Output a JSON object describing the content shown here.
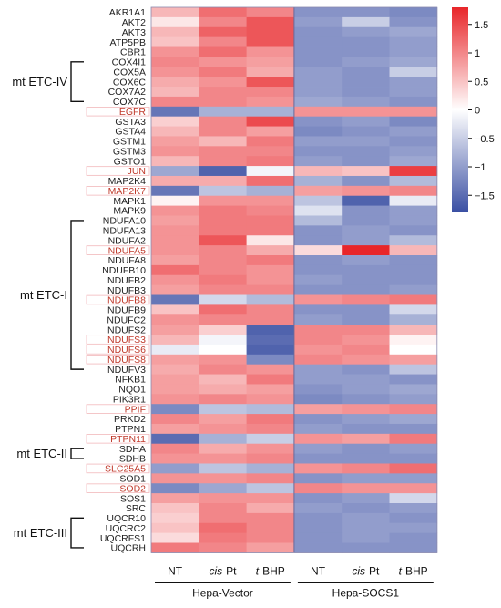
{
  "chart_data": {
    "type": "heatmap",
    "genes": [
      "AKR1A1",
      "AKT2",
      "AKT3",
      "ATP5PB",
      "CBR1",
      "COX4I1",
      "COX5A",
      "COX6C",
      "COX7A2",
      "COX7C",
      "EGFR",
      "GSTA3",
      "GSTA4",
      "GSTM1",
      "GSTM3",
      "GSTO1",
      "JUN",
      "MAP2K4",
      "MAP2K7",
      "MAPK1",
      "MAPK9",
      "NDUFA10",
      "NDUFA13",
      "NDUFA2",
      "NDUFA5",
      "NDUFA8",
      "NDUFB10",
      "NDUFB2",
      "NDUFB3",
      "NDUFB8",
      "NDUFB9",
      "NDUFC2",
      "NDUFS2",
      "NDUFS3",
      "NDUFS6",
      "NDUFS8",
      "NDUFV3",
      "NFKB1",
      "NQO1",
      "PIK3R1",
      "PPIF",
      "PRKD2",
      "PTPN1",
      "PTPN11",
      "SDHA",
      "SDHB",
      "SLC25A5",
      "SOD1",
      "SOD2",
      "SOS1",
      "SRC",
      "UQCR10",
      "UQCRC2",
      "UQCRFS1",
      "UQCRH"
    ],
    "highlighted_genes": [
      "EGFR",
      "JUN",
      "MAP2K7",
      "NDUFA5",
      "NDUFB8",
      "NDUFS3",
      "NDUFS6",
      "NDUFS8",
      "PPIF",
      "PTPN11",
      "SLC25A5",
      "SOD2"
    ],
    "columns": [
      {
        "prefix": "",
        "italic": "",
        "suffix": "NT"
      },
      {
        "prefix": "",
        "italic": "cis",
        "suffix": "-Pt"
      },
      {
        "prefix": "",
        "italic": "t",
        "suffix": "-BHP"
      },
      {
        "prefix": "",
        "italic": "",
        "suffix": "NT"
      },
      {
        "prefix": "",
        "italic": "cis",
        "suffix": "-Pt"
      },
      {
        "prefix": "",
        "italic": "t",
        "suffix": "-BHP"
      }
    ],
    "column_groups": [
      {
        "label": "Hepa-Vector",
        "span": [
          0,
          2
        ]
      },
      {
        "label": "Hepa-SOCS1",
        "span": [
          3,
          5
        ]
      }
    ],
    "row_groups": [
      {
        "label": "mt ETC-IV",
        "rows": [
          5,
          9
        ]
      },
      {
        "label": "mt ETC-I",
        "rows": [
          21,
          36
        ]
      },
      {
        "label": "mt ETC-II",
        "rows": [
          44,
          45
        ]
      },
      {
        "label": "mt ETC-III",
        "rows": [
          51,
          54
        ]
      }
    ],
    "values": [
      [
        0.6,
        1.2,
        1.0,
        -1.1,
        -1.1,
        -1.2
      ],
      [
        0.2,
        1.0,
        1.4,
        -1.0,
        -0.5,
        -1.1
      ],
      [
        0.6,
        1.3,
        1.4,
        -1.1,
        -1.0,
        -0.9
      ],
      [
        0.5,
        1.0,
        1.4,
        -1.1,
        -1.1,
        -1.0
      ],
      [
        0.9,
        1.2,
        0.9,
        -1.1,
        -1.1,
        -1.0
      ],
      [
        1.0,
        0.9,
        0.8,
        -1.1,
        -1.0,
        -0.9
      ],
      [
        0.9,
        1.1,
        0.7,
        -1.0,
        -1.1,
        -0.5
      ],
      [
        0.7,
        0.9,
        1.4,
        -1.0,
        -1.1,
        -1.0
      ],
      [
        0.6,
        1.0,
        1.0,
        -1.0,
        -1.1,
        -1.0
      ],
      [
        1.0,
        1.0,
        0.9,
        -0.9,
        -1.0,
        -1.1
      ],
      [
        -1.4,
        -0.8,
        -0.8,
        0.9,
        0.9,
        0.9
      ],
      [
        0.4,
        1.0,
        1.5,
        -1.1,
        -1.0,
        -1.2
      ],
      [
        0.6,
        1.0,
        0.8,
        -1.2,
        -1.1,
        -1.0
      ],
      [
        0.8,
        0.6,
        1.1,
        -1.0,
        -1.0,
        -1.1
      ],
      [
        0.9,
        1.0,
        1.0,
        -1.1,
        -1.1,
        -1.0
      ],
      [
        0.6,
        1.0,
        1.1,
        -1.0,
        -1.1,
        -0.9
      ],
      [
        -0.9,
        -1.6,
        -0.1,
        0.6,
        0.5,
        1.6
      ],
      [
        0.7,
        0.7,
        1.2,
        -0.8,
        -1.1,
        -0.7
      ],
      [
        -1.4,
        -0.6,
        -0.8,
        0.8,
        0.9,
        1.0
      ],
      [
        0.1,
        0.9,
        0.9,
        -0.6,
        -1.6,
        -0.2
      ],
      [
        0.9,
        1.1,
        1.0,
        -0.3,
        -1.1,
        -1.0
      ],
      [
        0.8,
        1.1,
        1.1,
        -0.7,
        -1.1,
        -1.0
      ],
      [
        0.9,
        1.1,
        1.1,
        -1.1,
        -1.0,
        -1.1
      ],
      [
        0.9,
        1.4,
        0.2,
        -1.1,
        -1.0,
        -0.7
      ],
      [
        0.9,
        1.0,
        0.7,
        0.3,
        1.8,
        0.6
      ],
      [
        0.8,
        1.0,
        1.1,
        -1.1,
        -1.0,
        -1.1
      ],
      [
        1.2,
        1.0,
        0.9,
        -1.1,
        -1.1,
        -1.1
      ],
      [
        0.9,
        1.1,
        0.9,
        -1.0,
        -1.1,
        -1.1
      ],
      [
        0.8,
        1.0,
        1.0,
        -1.1,
        -1.1,
        -1.0
      ],
      [
        -1.4,
        -0.4,
        -0.7,
        0.9,
        1.0,
        1.1
      ],
      [
        0.5,
        1.2,
        1.0,
        -1.1,
        -1.1,
        -0.4
      ],
      [
        0.9,
        1.0,
        1.0,
        -1.0,
        -1.1,
        -0.8
      ],
      [
        0.8,
        0.4,
        -1.6,
        1.0,
        1.0,
        0.6
      ],
      [
        0.6,
        -0.1,
        -1.5,
        1.0,
        0.9,
        0.1
      ],
      [
        -0.2,
        0.0,
        -1.6,
        0.9,
        1.0,
        0.0
      ],
      [
        0.8,
        0.9,
        -1.2,
        1.0,
        0.9,
        0.8
      ],
      [
        0.7,
        1.0,
        0.9,
        -1.0,
        -1.1,
        -0.6
      ],
      [
        0.8,
        0.6,
        1.1,
        -1.0,
        -1.0,
        -1.1
      ],
      [
        0.8,
        0.7,
        0.8,
        -1.1,
        -1.0,
        -0.9
      ],
      [
        0.9,
        1.0,
        0.9,
        -1.2,
        -1.1,
        -1.0
      ],
      [
        -1.2,
        -0.6,
        -0.7,
        0.8,
        0.9,
        1.0
      ],
      [
        1.0,
        0.8,
        1.1,
        -1.1,
        -1.0,
        -0.9
      ],
      [
        0.8,
        0.9,
        1.0,
        -1.0,
        -1.1,
        -1.1
      ],
      [
        -1.5,
        -0.8,
        -0.5,
        0.9,
        0.8,
        1.1
      ],
      [
        1.0,
        0.7,
        0.9,
        -1.0,
        -1.1,
        -1.0
      ],
      [
        0.9,
        0.9,
        1.0,
        -1.1,
        -1.1,
        -1.1
      ],
      [
        -1.0,
        -0.6,
        -0.8,
        0.9,
        1.0,
        1.2
      ],
      [
        0.9,
        0.9,
        1.0,
        -1.1,
        -1.0,
        -1.0
      ],
      [
        -1.2,
        -0.9,
        -0.6,
        1.0,
        0.9,
        0.9
      ],
      [
        0.8,
        0.9,
        0.9,
        -1.1,
        -1.0,
        -0.4
      ],
      [
        0.5,
        1.0,
        0.7,
        -1.0,
        -1.1,
        -1.0
      ],
      [
        0.4,
        1.0,
        1.0,
        -1.1,
        -1.0,
        -1.1
      ],
      [
        0.5,
        1.2,
        1.0,
        -1.1,
        -1.0,
        -1.0
      ],
      [
        0.3,
        1.1,
        1.0,
        -1.1,
        -1.0,
        -1.1
      ],
      [
        1.1,
        1.0,
        0.8,
        -1.1,
        -1.1,
        -1.1
      ]
    ],
    "colorbar": {
      "range": [
        -1.8,
        1.8
      ],
      "ticks": [
        1.5,
        1,
        0.5,
        0,
        -0.5,
        -1,
        -1.5
      ],
      "tick_labels": [
        "1.5",
        "1",
        "0.5",
        "0",
        "−0.5",
        "−1",
        "−1.5"
      ],
      "low_color": "#3a4fa3",
      "mid_color": "#ffffff",
      "high_color": "#e8262a"
    },
    "highlight_color": "#c0392b"
  }
}
